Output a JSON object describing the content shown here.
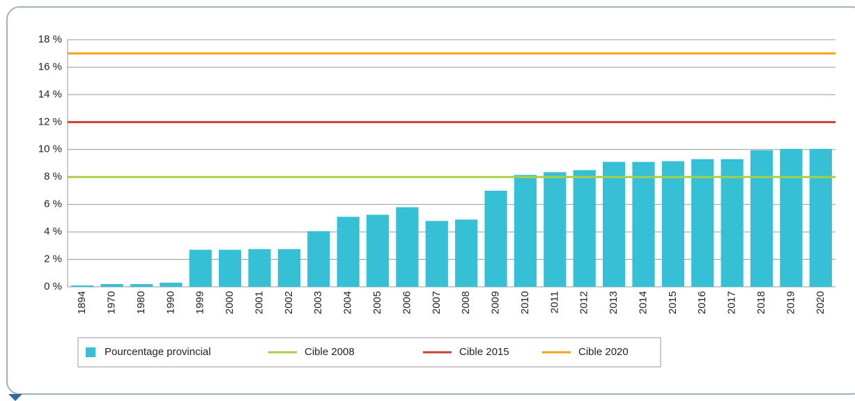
{
  "chart_data": {
    "type": "bar",
    "categories": [
      "1894",
      "1970",
      "1980",
      "1990",
      "1999",
      "2000",
      "2001",
      "2002",
      "2003",
      "2004",
      "2005",
      "2006",
      "2007",
      "2008",
      "2009",
      "2010",
      "2011",
      "2012",
      "2013",
      "2014",
      "2015",
      "2016",
      "2017",
      "2018",
      "2019",
      "2020"
    ],
    "series": [
      {
        "name": "Pourcentage provincial",
        "color": "#36c0d6",
        "values": [
          0.1,
          0.2,
          0.2,
          0.3,
          2.7,
          2.7,
          2.75,
          2.75,
          4.05,
          5.1,
          5.25,
          5.8,
          4.8,
          4.9,
          7.0,
          8.15,
          8.35,
          8.5,
          9.1,
          9.1,
          9.15,
          9.3,
          9.3,
          9.95,
          10.05,
          10.05
        ]
      }
    ],
    "reference_lines": [
      {
        "name": "Cible 2008",
        "color": "#a8cf45",
        "value": 8
      },
      {
        "name": "Cible 2015",
        "color": "#cc3d33",
        "value": 12
      },
      {
        "name": "Cible 2020",
        "color": "#f7a21b",
        "value": 17
      }
    ],
    "ylim": [
      0,
      18
    ],
    "yticks": [
      {
        "value": 0,
        "label": "0 %"
      },
      {
        "value": 2,
        "label": "2 %"
      },
      {
        "value": 4,
        "label": "4 %"
      },
      {
        "value": 6,
        "label": "6 %"
      },
      {
        "value": 8,
        "label": "8 %"
      },
      {
        "value": 10,
        "label": "10 %"
      },
      {
        "value": 12,
        "label": "12 %"
      },
      {
        "value": 14,
        "label": "14 %"
      },
      {
        "value": 16,
        "label": "16 %"
      },
      {
        "value": 18,
        "label": "18 %"
      }
    ],
    "grid": true
  }
}
